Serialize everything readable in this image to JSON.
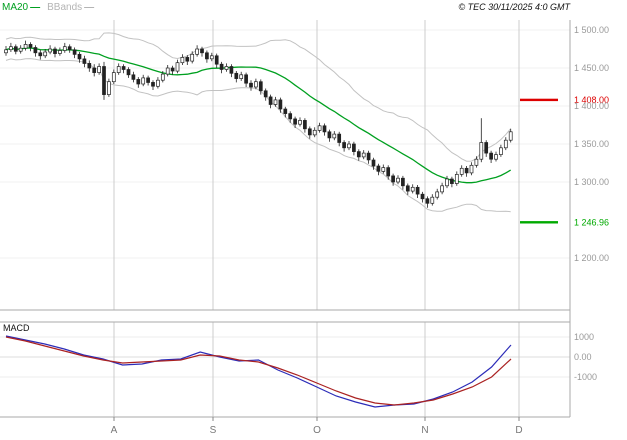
{
  "copyright": "© TEC 30/11/2025 4:0 GMT",
  "macd_label": "MACD",
  "legend": {
    "items": [
      {
        "label": "MA20",
        "color": "#00a020"
      },
      {
        "label": "BBands",
        "color": "#b4b4b4"
      }
    ]
  },
  "colors": {
    "candle": "#222222",
    "grid": "#cccccc",
    "border": "#aaaaaa",
    "axis_text": "#999999",
    "month_text": "#777777",
    "ma20": "#00a020",
    "bband": "#c2c2c2",
    "macd_line": "#2c2cb8",
    "macd_signal": "#aa2222",
    "resistance": "#dd0000",
    "support": "#00aa00"
  },
  "axes": {
    "price": {
      "labels": [
        {
          "text": "1 500.00",
          "value": 1500
        },
        {
          "text": "1 450.00",
          "value": 1450
        },
        {
          "text": "1 400.00",
          "value": 1400
        },
        {
          "text": "1 350.00",
          "value": 1350
        },
        {
          "text": "1 300.00",
          "value": 1300
        },
        {
          "text": "1 200.00",
          "value": 1200
        }
      ]
    },
    "macd": {
      "labels": [
        {
          "text": "1000",
          "value": 1000
        },
        {
          "text": "0.00",
          "value": 0
        },
        {
          "text": "-1000",
          "value": -1000
        }
      ]
    },
    "time": {
      "labels": [
        "A",
        "S",
        "O",
        "N",
        "D"
      ]
    }
  },
  "levels": [
    {
      "text": "1 408.00",
      "value": 1408,
      "color": "#dd0000",
      "name": "resistance"
    },
    {
      "text": "1 246.96",
      "value": 1246.96,
      "color": "#00aa00",
      "name": "support"
    }
  ],
  "chart_data": [
    {
      "type": "candlestick",
      "title": "",
      "legend": [
        "MA20",
        "BBands"
      ],
      "ylim": [
        1150,
        1540
      ],
      "y_tick_values": [
        1500,
        1450,
        1400,
        1350,
        1300,
        1200
      ],
      "x_tick_labels": [
        "A",
        "S",
        "O",
        "N",
        "D"
      ],
      "support_resistance": [
        1408.0,
        1246.96
      ],
      "ohlc": [
        [
          1470,
          1479,
          1466,
          1474
        ],
        [
          1474,
          1483,
          1471,
          1478
        ],
        [
          1478,
          1481,
          1468,
          1472
        ],
        [
          1472,
          1480,
          1469,
          1476
        ],
        [
          1476,
          1486,
          1473,
          1481
        ],
        [
          1481,
          1484,
          1472,
          1477
        ],
        [
          1477,
          1480,
          1465,
          1470
        ],
        [
          1470,
          1474,
          1461,
          1466
        ],
        [
          1466,
          1475,
          1463,
          1471
        ],
        [
          1471,
          1480,
          1468,
          1475
        ],
        [
          1475,
          1478,
          1464,
          1469
        ],
        [
          1469,
          1477,
          1466,
          1473
        ],
        [
          1473,
          1483,
          1470,
          1478
        ],
        [
          1478,
          1481,
          1470,
          1474
        ],
        [
          1474,
          1477,
          1463,
          1468
        ],
        [
          1468,
          1471,
          1457,
          1462
        ],
        [
          1462,
          1466,
          1451,
          1456
        ],
        [
          1456,
          1460,
          1445,
          1450
        ],
        [
          1450,
          1455,
          1439,
          1444
        ],
        [
          1444,
          1456,
          1441,
          1452
        ],
        [
          1452,
          1458,
          1408,
          1415
        ],
        [
          1415,
          1436,
          1412,
          1432
        ],
        [
          1432,
          1448,
          1429,
          1444
        ],
        [
          1444,
          1456,
          1441,
          1452
        ],
        [
          1452,
          1455,
          1443,
          1448
        ],
        [
          1448,
          1451,
          1437,
          1441
        ],
        [
          1441,
          1445,
          1431,
          1435
        ],
        [
          1435,
          1438,
          1424,
          1429
        ],
        [
          1429,
          1441,
          1426,
          1437
        ],
        [
          1437,
          1440,
          1427,
          1431
        ],
        [
          1431,
          1434,
          1421,
          1426
        ],
        [
          1426,
          1438,
          1423,
          1434
        ],
        [
          1434,
          1446,
          1431,
          1442
        ],
        [
          1442,
          1454,
          1439,
          1450
        ],
        [
          1450,
          1453,
          1441,
          1446
        ],
        [
          1446,
          1461,
          1443,
          1457
        ],
        [
          1457,
          1468,
          1454,
          1464
        ],
        [
          1464,
          1467,
          1454,
          1459
        ],
        [
          1459,
          1472,
          1456,
          1468
        ],
        [
          1468,
          1480,
          1465,
          1475
        ],
        [
          1475,
          1478,
          1465,
          1470
        ],
        [
          1470,
          1473,
          1457,
          1462
        ],
        [
          1462,
          1470,
          1459,
          1466
        ],
        [
          1466,
          1469,
          1450,
          1455
        ],
        [
          1455,
          1458,
          1443,
          1448
        ],
        [
          1448,
          1456,
          1445,
          1452
        ],
        [
          1452,
          1455,
          1438,
          1443
        ],
        [
          1443,
          1446,
          1431,
          1436
        ],
        [
          1436,
          1445,
          1433,
          1441
        ],
        [
          1441,
          1444,
          1425,
          1430
        ],
        [
          1430,
          1434,
          1420,
          1425
        ],
        [
          1425,
          1436,
          1422,
          1432
        ],
        [
          1432,
          1435,
          1415,
          1420
        ],
        [
          1420,
          1423,
          1407,
          1412
        ],
        [
          1412,
          1415,
          1397,
          1402
        ],
        [
          1402,
          1412,
          1399,
          1408
        ],
        [
          1408,
          1411,
          1391,
          1396
        ],
        [
          1396,
          1399,
          1385,
          1390
        ],
        [
          1390,
          1393,
          1378,
          1383
        ],
        [
          1383,
          1386,
          1371,
          1376
        ],
        [
          1376,
          1385,
          1373,
          1381
        ],
        [
          1381,
          1384,
          1365,
          1370
        ],
        [
          1370,
          1373,
          1357,
          1362
        ],
        [
          1362,
          1372,
          1359,
          1368
        ],
        [
          1368,
          1378,
          1365,
          1374
        ],
        [
          1374,
          1377,
          1361,
          1366
        ],
        [
          1366,
          1369,
          1353,
          1358
        ],
        [
          1358,
          1367,
          1355,
          1363
        ],
        [
          1363,
          1366,
          1347,
          1352
        ],
        [
          1352,
          1355,
          1340,
          1345
        ],
        [
          1345,
          1354,
          1342,
          1350
        ],
        [
          1350,
          1353,
          1335,
          1340
        ],
        [
          1340,
          1343,
          1328,
          1333
        ],
        [
          1333,
          1342,
          1330,
          1338
        ],
        [
          1338,
          1341,
          1324,
          1329
        ],
        [
          1329,
          1332,
          1316,
          1321
        ],
        [
          1321,
          1324,
          1309,
          1314
        ],
        [
          1314,
          1323,
          1311,
          1319
        ],
        [
          1319,
          1322,
          1303,
          1308
        ],
        [
          1308,
          1311,
          1295,
          1300
        ],
        [
          1300,
          1309,
          1297,
          1305
        ],
        [
          1305,
          1308,
          1290,
          1295
        ],
        [
          1295,
          1298,
          1283,
          1288
        ],
        [
          1288,
          1297,
          1285,
          1293
        ],
        [
          1293,
          1296,
          1279,
          1284
        ],
        [
          1284,
          1287,
          1273,
          1278
        ],
        [
          1278,
          1281,
          1266,
          1272
        ],
        [
          1272,
          1284,
          1269,
          1280
        ],
        [
          1280,
          1291,
          1277,
          1287
        ],
        [
          1287,
          1299,
          1284,
          1295
        ],
        [
          1295,
          1308,
          1292,
          1304
        ],
        [
          1304,
          1307,
          1293,
          1298
        ],
        [
          1298,
          1314,
          1295,
          1310
        ],
        [
          1310,
          1322,
          1307,
          1318
        ],
        [
          1318,
          1321,
          1307,
          1312
        ],
        [
          1312,
          1326,
          1309,
          1322
        ],
        [
          1322,
          1334,
          1319,
          1330
        ],
        [
          1330,
          1384,
          1326,
          1352
        ],
        [
          1352,
          1355,
          1333,
          1338
        ],
        [
          1338,
          1341,
          1325,
          1330
        ],
        [
          1330,
          1340,
          1327,
          1336
        ],
        [
          1336,
          1349,
          1333,
          1345
        ],
        [
          1345,
          1359,
          1342,
          1355
        ],
        [
          1355,
          1370,
          1352,
          1366
        ]
      ]
    },
    {
      "type": "line",
      "title": "MACD",
      "ylim": [
        -3000,
        1500
      ],
      "y_tick_values": [
        1000,
        0,
        -1000
      ],
      "series": [
        {
          "name": "MACD",
          "color": "#2c2cb8",
          "values": [
            1050,
            850,
            650,
            400,
            100,
            -100,
            -400,
            -350,
            -150,
            -100,
            250,
            0,
            -200,
            -150,
            -650,
            -1050,
            -1500,
            -1950,
            -2250,
            -2500,
            -2400,
            -2350,
            -2100,
            -1750,
            -1250,
            -500,
            600
          ]
        },
        {
          "name": "Signal",
          "color": "#aa2222",
          "values": [
            1000,
            800,
            550,
            300,
            50,
            -150,
            -300,
            -250,
            -200,
            -150,
            100,
            50,
            -150,
            -250,
            -550,
            -900,
            -1300,
            -1700,
            -2050,
            -2300,
            -2400,
            -2300,
            -2150,
            -1850,
            -1500,
            -1000,
            -100
          ]
        }
      ]
    }
  ]
}
